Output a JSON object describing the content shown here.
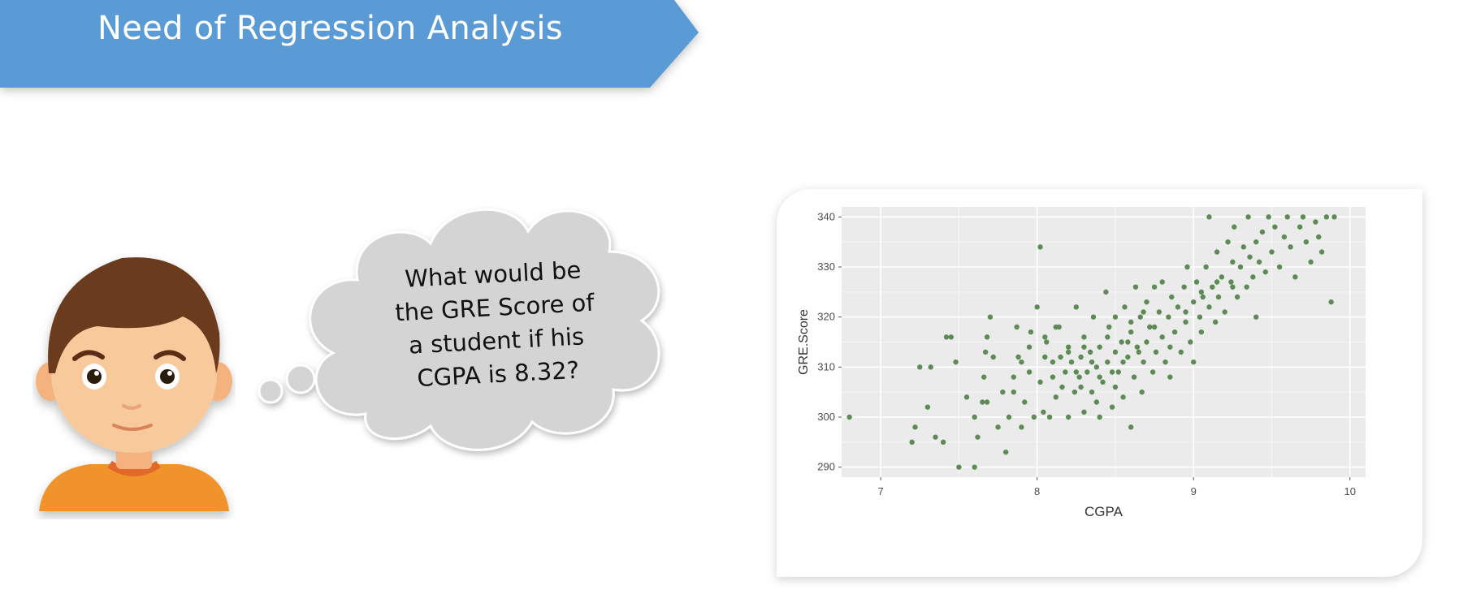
{
  "slide": {
    "title": "Need of Regression Analysis",
    "thought_bubble_text": "What would be\nthe GRE Score of\na student if his\nCGPA is 8.32?",
    "colors": {
      "banner": "#5b9bd5",
      "point": "#5e8a55",
      "panel": "#ebebeb",
      "skin": "#f8c99a",
      "hair": "#6b3b1f",
      "shirt": "#f0932b"
    }
  },
  "chart_data": {
    "type": "scatter",
    "title": "",
    "xlabel": "CGPA",
    "ylabel": "GRE.Score",
    "xlim": [
      6.75,
      10.1
    ],
    "ylim": [
      288,
      342
    ],
    "x_ticks": [
      "7",
      "8",
      "9",
      "10"
    ],
    "y_ticks": [
      "290",
      "300",
      "310",
      "320",
      "330",
      "340"
    ],
    "grid": true,
    "point_color": "#5e8a55",
    "points": [
      [
        6.8,
        300
      ],
      [
        7.2,
        295
      ],
      [
        7.22,
        298
      ],
      [
        7.25,
        310
      ],
      [
        7.3,
        302
      ],
      [
        7.35,
        296
      ],
      [
        7.32,
        310
      ],
      [
        7.4,
        295
      ],
      [
        7.42,
        316
      ],
      [
        7.45,
        316
      ],
      [
        7.5,
        290
      ],
      [
        7.48,
        311
      ],
      [
        7.55,
        304
      ],
      [
        7.6,
        290
      ],
      [
        7.6,
        300
      ],
      [
        7.62,
        296
      ],
      [
        7.65,
        303
      ],
      [
        7.66,
        308
      ],
      [
        7.67,
        313
      ],
      [
        7.68,
        316
      ],
      [
        7.68,
        303
      ],
      [
        7.7,
        320
      ],
      [
        7.72,
        312
      ],
      [
        7.75,
        298
      ],
      [
        7.78,
        305
      ],
      [
        7.8,
        293
      ],
      [
        7.82,
        300
      ],
      [
        7.85,
        305
      ],
      [
        7.87,
        318
      ],
      [
        7.88,
        312
      ],
      [
        7.9,
        298
      ],
      [
        7.92,
        303
      ],
      [
        7.95,
        309
      ],
      [
        7.96,
        317
      ],
      [
        7.98,
        300
      ],
      [
        8.0,
        322
      ],
      [
        8.02,
        334
      ],
      [
        8.02,
        307
      ],
      [
        8.04,
        301
      ],
      [
        8.05,
        312
      ],
      [
        8.06,
        315
      ],
      [
        8.08,
        300
      ],
      [
        8.1,
        311
      ],
      [
        8.12,
        304
      ],
      [
        8.14,
        318
      ],
      [
        8.16,
        306
      ],
      [
        8.18,
        309
      ],
      [
        8.2,
        300
      ],
      [
        8.2,
        314
      ],
      [
        8.22,
        311
      ],
      [
        8.24,
        305
      ],
      [
        8.25,
        322
      ],
      [
        8.27,
        308
      ],
      [
        8.28,
        312
      ],
      [
        8.3,
        301
      ],
      [
        8.3,
        316
      ],
      [
        8.32,
        309
      ],
      [
        8.34,
        313
      ],
      [
        8.35,
        305
      ],
      [
        8.36,
        320
      ],
      [
        8.38,
        310
      ],
      [
        8.4,
        300
      ],
      [
        8.4,
        314
      ],
      [
        8.42,
        307
      ],
      [
        8.44,
        325
      ],
      [
        8.45,
        311
      ],
      [
        8.46,
        318
      ],
      [
        8.48,
        302
      ],
      [
        8.5,
        313
      ],
      [
        8.5,
        320
      ],
      [
        8.52,
        309
      ],
      [
        8.54,
        315
      ],
      [
        8.55,
        304
      ],
      [
        8.56,
        322
      ],
      [
        8.58,
        312
      ],
      [
        8.6,
        298
      ],
      [
        8.6,
        317
      ],
      [
        8.62,
        308
      ],
      [
        8.63,
        326
      ],
      [
        8.64,
        314
      ],
      [
        8.66,
        320
      ],
      [
        8.67,
        305
      ],
      [
        8.68,
        311
      ],
      [
        8.7,
        323
      ],
      [
        8.7,
        315
      ],
      [
        8.72,
        318
      ],
      [
        8.74,
        309
      ],
      [
        8.75,
        326
      ],
      [
        8.76,
        313
      ],
      [
        8.78,
        321
      ],
      [
        8.8,
        316
      ],
      [
        8.8,
        327
      ],
      [
        8.82,
        311
      ],
      [
        8.84,
        320
      ],
      [
        8.85,
        308
      ],
      [
        8.86,
        324
      ],
      [
        8.88,
        317
      ],
      [
        8.9,
        322
      ],
      [
        8.92,
        313
      ],
      [
        8.94,
        326
      ],
      [
        8.95,
        319
      ],
      [
        8.96,
        330
      ],
      [
        8.98,
        315
      ],
      [
        9.0,
        323
      ],
      [
        9.0,
        311
      ],
      [
        9.02,
        327
      ],
      [
        9.04,
        320
      ],
      [
        9.05,
        317
      ],
      [
        9.06,
        324
      ],
      [
        9.08,
        330
      ],
      [
        9.1,
        322
      ],
      [
        9.1,
        340
      ],
      [
        9.12,
        326
      ],
      [
        9.14,
        319
      ],
      [
        9.15,
        333
      ],
      [
        9.16,
        324
      ],
      [
        9.18,
        328
      ],
      [
        9.2,
        321
      ],
      [
        9.22,
        335
      ],
      [
        9.24,
        327
      ],
      [
        9.25,
        331
      ],
      [
        9.26,
        338
      ],
      [
        9.28,
        324
      ],
      [
        9.3,
        330
      ],
      [
        9.32,
        334
      ],
      [
        9.34,
        326
      ],
      [
        9.35,
        340
      ],
      [
        9.36,
        332
      ],
      [
        9.38,
        328
      ],
      [
        9.4,
        320
      ],
      [
        9.4,
        335
      ],
      [
        9.42,
        331
      ],
      [
        9.44,
        337
      ],
      [
        9.46,
        329
      ],
      [
        9.48,
        340
      ],
      [
        9.5,
        333
      ],
      [
        9.52,
        338
      ],
      [
        9.55,
        330
      ],
      [
        9.58,
        336
      ],
      [
        9.6,
        340
      ],
      [
        9.62,
        334
      ],
      [
        9.65,
        328
      ],
      [
        9.68,
        338
      ],
      [
        9.7,
        340
      ],
      [
        9.72,
        335
      ],
      [
        9.75,
        331
      ],
      [
        9.78,
        339
      ],
      [
        9.8,
        336
      ],
      [
        9.82,
        333
      ],
      [
        9.85,
        340
      ],
      [
        9.88,
        323
      ],
      [
        9.9,
        340
      ],
      [
        8.2,
        313
      ],
      [
        8.25,
        309
      ],
      [
        8.3,
        314
      ],
      [
        8.35,
        311
      ],
      [
        8.1,
        308
      ],
      [
        8.15,
        312
      ],
      [
        8.45,
        316
      ],
      [
        8.55,
        311
      ],
      [
        8.65,
        313
      ],
      [
        8.75,
        318
      ],
      [
        8.85,
        314
      ],
      [
        8.95,
        321
      ],
      [
        9.05,
        325
      ],
      [
        9.15,
        327
      ],
      [
        9.25,
        326
      ],
      [
        8.4,
        308
      ],
      [
        8.5,
        306
      ],
      [
        8.6,
        319
      ],
      [
        7.9,
        311
      ],
      [
        7.95,
        314
      ],
      [
        8.05,
        316
      ],
      [
        7.85,
        308
      ],
      [
        8.12,
        318
      ],
      [
        8.28,
        306
      ],
      [
        8.38,
        303
      ],
      [
        8.48,
        309
      ],
      [
        8.58,
        315
      ],
      [
        8.68,
        321
      ]
    ]
  }
}
